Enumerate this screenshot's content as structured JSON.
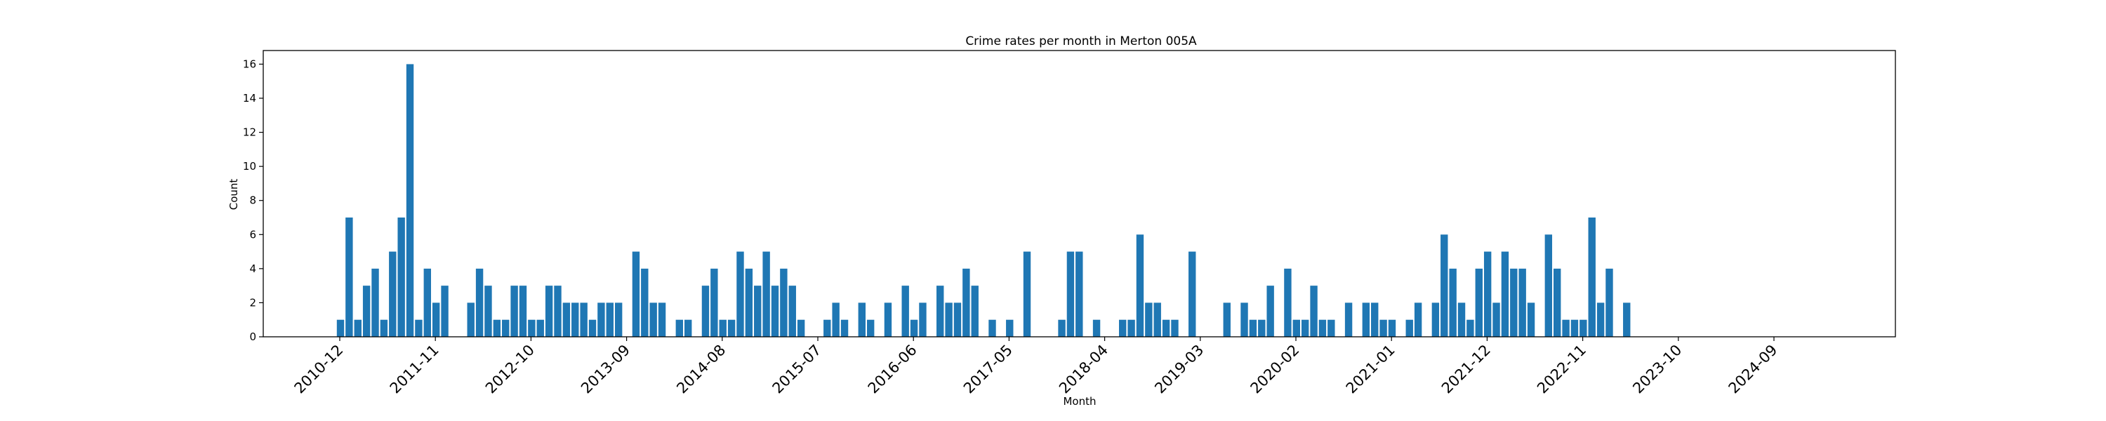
{
  "chart_data": {
    "type": "bar",
    "title": "Crime rates per month in Merton 005A",
    "xlabel": "Month",
    "ylabel": "Count",
    "ylim": [
      0,
      16.8
    ],
    "yticks": [
      0,
      2,
      4,
      6,
      8,
      10,
      12,
      14,
      16
    ],
    "xtick_labels": [
      "2010-12",
      "2011-11",
      "2012-10",
      "2013-09",
      "2014-08",
      "2015-07",
      "2016-06",
      "2017-05",
      "2018-04",
      "2019-03",
      "2020-02",
      "2021-01",
      "2021-12",
      "2022-11",
      "2023-10",
      "2024-09"
    ],
    "bar_color": "#1f77b4",
    "grid": false,
    "values": [
      1,
      7,
      1,
      3,
      4,
      1,
      5,
      7,
      16,
      1,
      4,
      2,
      3,
      0,
      0,
      2,
      4,
      3,
      1,
      1,
      3,
      3,
      1,
      1,
      3,
      3,
      2,
      2,
      2,
      1,
      2,
      2,
      2,
      0,
      5,
      4,
      2,
      2,
      0,
      1,
      1,
      0,
      3,
      4,
      1,
      1,
      5,
      4,
      3,
      5,
      3,
      4,
      3,
      1,
      0,
      0,
      1,
      2,
      1,
      0,
      2,
      1,
      0,
      2,
      0,
      3,
      1,
      2,
      0,
      3,
      2,
      2,
      4,
      3,
      0,
      1,
      0,
      1,
      0,
      5,
      0,
      0,
      0,
      1,
      5,
      5,
      0,
      1,
      0,
      0,
      1,
      1,
      6,
      2,
      2,
      1,
      1,
      0,
      5,
      0,
      0,
      0,
      2,
      0,
      2,
      1,
      1,
      3,
      0,
      4,
      1,
      1,
      3,
      1,
      1,
      0,
      2,
      0,
      2,
      2,
      1,
      1,
      0,
      1,
      2,
      0,
      2,
      6,
      4,
      2,
      1,
      4,
      5,
      2,
      5,
      4,
      4,
      2,
      0,
      6,
      4,
      1,
      1,
      1,
      7,
      2,
      4,
      0,
      2
    ]
  }
}
